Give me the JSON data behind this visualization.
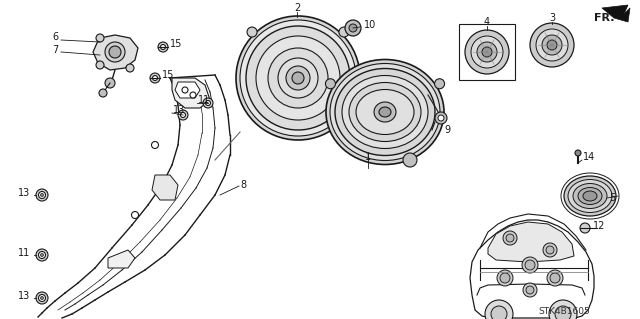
{
  "bg_color": "#ffffff",
  "line_color": "#1a1a1a",
  "diagram_code": "STK4B1605",
  "figsize": [
    6.4,
    3.19
  ],
  "dpi": 100
}
